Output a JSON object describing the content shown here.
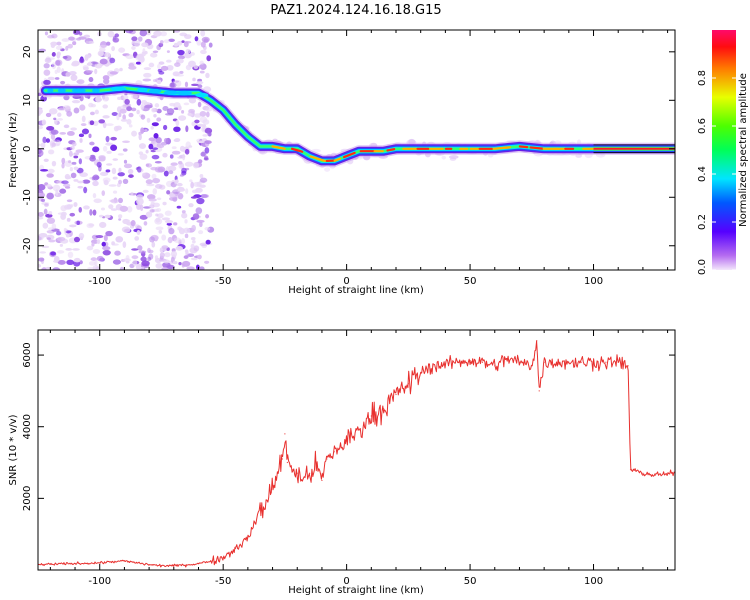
{
  "figure_title": "PAZ1.2024.124.16.18.G15",
  "chart_data": [
    {
      "type": "heatmap",
      "title": "PAZ1.2024.124.16.18.G15",
      "xlabel": "Height of straight line (km)",
      "ylabel": "Frequency (Hz)",
      "xlim": [
        -125,
        133
      ],
      "ylim": [
        -25,
        24.5
      ],
      "xticks": [
        -100,
        -50,
        0,
        50,
        100
      ],
      "yticks": [
        -20,
        -10,
        0,
        10,
        20
      ],
      "xtick_labels": [
        "-100",
        "-50",
        "0",
        "50",
        "100"
      ],
      "ytick_labels": [
        "-20",
        "-10",
        "0",
        "10",
        "20"
      ],
      "colorbar": {
        "label": "Normalized spectral amplitude",
        "range": [
          0,
          1
        ],
        "ticks": [
          0.0,
          0.2,
          0.4,
          0.6,
          0.8
        ],
        "tick_labels": [
          "0.0",
          "0.2",
          "0.4",
          "0.6",
          "0.8"
        ],
        "colormap": "gist_rainbow (purple to red)"
      },
      "main_trace": [
        [
          -122,
          12
        ],
        [
          -110,
          12
        ],
        [
          -100,
          12
        ],
        [
          -90,
          12.5
        ],
        [
          -80,
          12
        ],
        [
          -70,
          11.5
        ],
        [
          -60,
          11.5
        ],
        [
          -55,
          10
        ],
        [
          -50,
          8
        ],
        [
          -45,
          5
        ],
        [
          -40,
          2.5
        ],
        [
          -35,
          0.5
        ],
        [
          -30,
          0.5
        ],
        [
          -25,
          0
        ],
        [
          -20,
          0
        ],
        [
          -15,
          -1.5
        ],
        [
          -10,
          -2.5
        ],
        [
          -5,
          -2.5
        ],
        [
          0,
          -1.5
        ],
        [
          5,
          -0.5
        ],
        [
          10,
          -0.5
        ],
        [
          15,
          -0.5
        ],
        [
          20,
          0
        ],
        [
          30,
          0
        ],
        [
          40,
          0
        ],
        [
          50,
          0
        ],
        [
          60,
          0
        ],
        [
          70,
          0.5
        ],
        [
          80,
          0
        ],
        [
          90,
          0
        ],
        [
          100,
          0
        ],
        [
          110,
          0
        ],
        [
          120,
          0
        ],
        [
          133,
          0
        ]
      ],
      "noise_region": [
        -125,
        -55
      ]
    },
    {
      "type": "line",
      "title": "",
      "xlabel": "Height of straight line (km)",
      "ylabel": "SNR (10 * v/v)",
      "xlim": [
        -125,
        133
      ],
      "ylim": [
        0,
        6700
      ],
      "xticks": [
        -100,
        -50,
        0,
        50,
        100
      ],
      "yticks": [
        2000,
        4000,
        6000
      ],
      "xtick_labels": [
        "-100",
        "-50",
        "0",
        "50",
        "100"
      ],
      "ytick_labels": [
        "2000",
        "4000",
        "6000"
      ],
      "color": "#e8302e",
      "series": [
        {
          "x": [
            -125,
            -110,
            -100,
            -95,
            -90,
            -85,
            -80,
            -75,
            -70,
            -65,
            -60,
            -55,
            -50,
            -45,
            -40,
            -37,
            -35,
            -33,
            -30,
            -28,
            -26,
            -25,
            -24,
            -22,
            -20,
            -18,
            -15,
            -12,
            -10,
            -8,
            -5,
            0,
            5,
            10,
            15,
            20,
            25,
            30,
            35,
            40,
            45,
            50,
            55,
            60,
            65,
            70,
            75,
            77,
            78,
            80,
            85,
            90,
            95,
            100,
            105,
            110,
            114,
            115,
            120,
            125,
            133
          ],
          "values": [
            150,
            180,
            200,
            230,
            250,
            200,
            150,
            120,
            120,
            140,
            180,
            250,
            350,
            600,
            900,
            1300,
            1800,
            1700,
            2400,
            2700,
            3100,
            3800,
            3000,
            2800,
            2700,
            2500,
            2700,
            2900,
            2500,
            3100,
            3300,
            3600,
            3900,
            4300,
            4500,
            4900,
            5200,
            5500,
            5700,
            5750,
            5800,
            5850,
            5800,
            5700,
            5900,
            5800,
            5700,
            6400,
            5000,
            5800,
            5800,
            5800,
            5800,
            5800,
            5800,
            5800,
            5700,
            2800,
            2700,
            2650,
            2700
          ]
        }
      ]
    }
  ]
}
